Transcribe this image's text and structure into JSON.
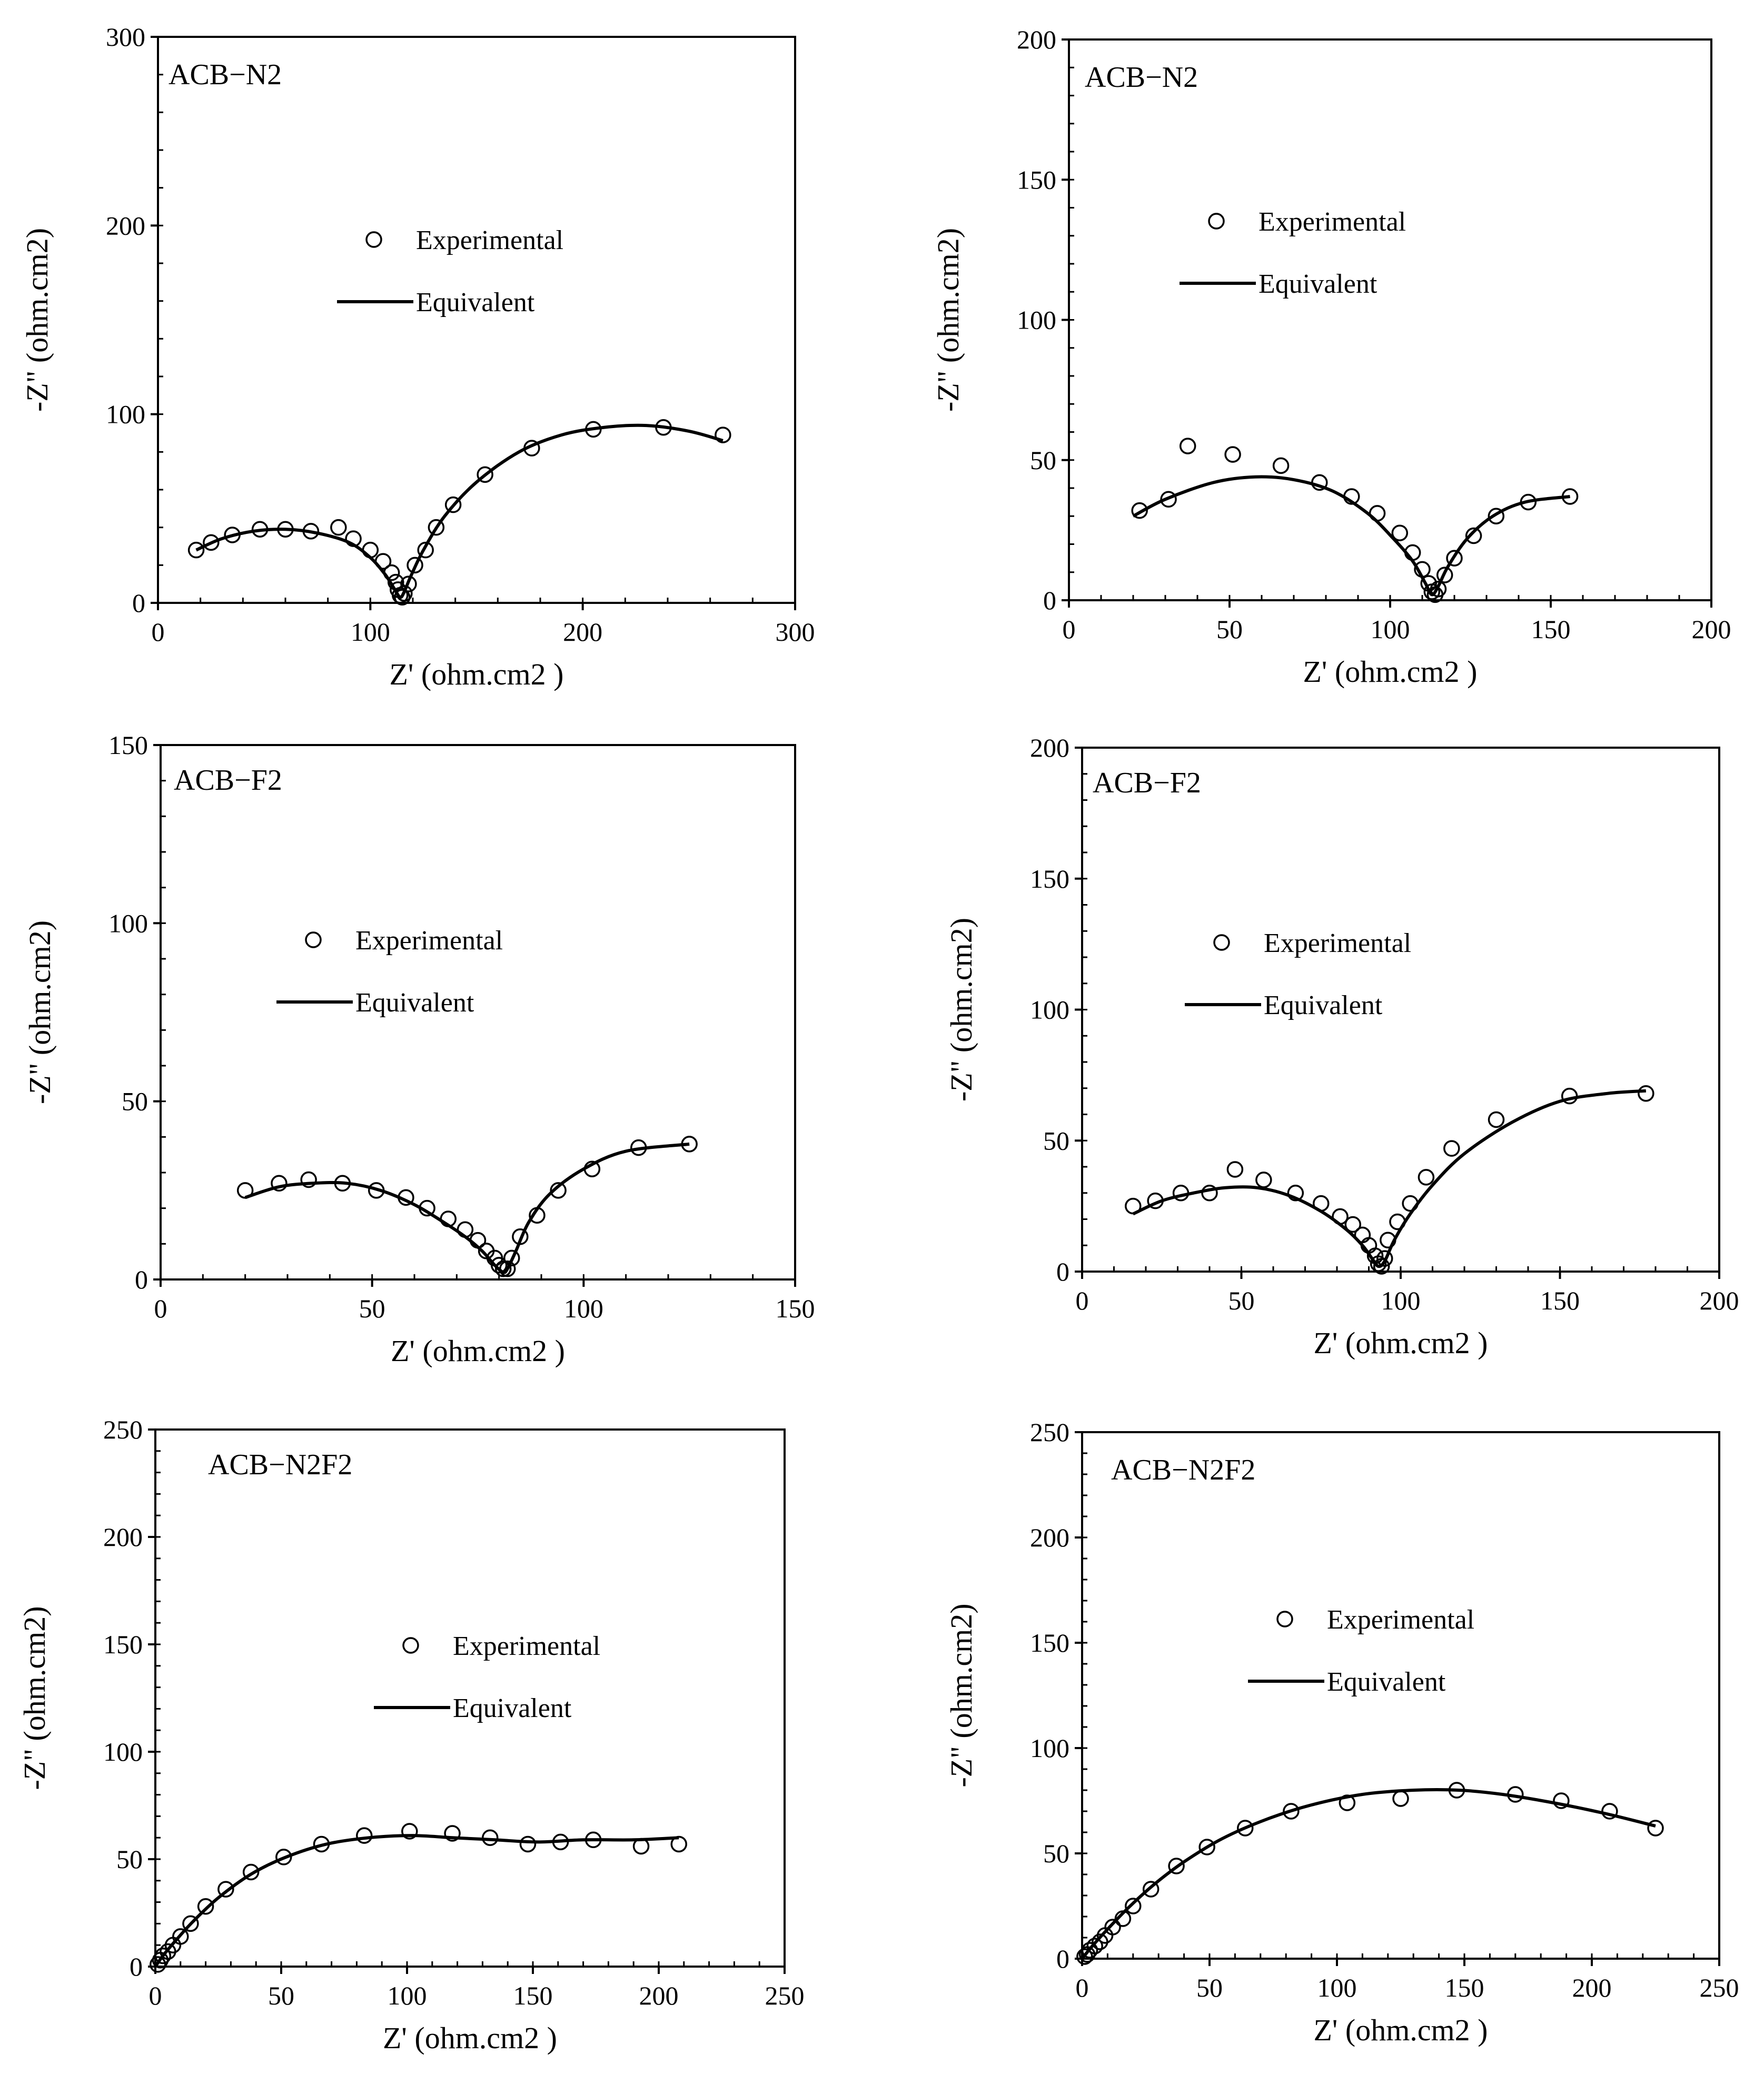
{
  "chart_data": [
    {
      "type": "scatter",
      "title": "ACB−N2",
      "xlabel": "Z' (ohm.cm2 )",
      "ylabel": "-Z\" (ohm.cm2)",
      "xlim": [
        0,
        300
      ],
      "ylim": [
        0,
        300
      ],
      "xticks": [
        0,
        100,
        200,
        300
      ],
      "yticks": [
        0,
        100,
        200,
        300
      ],
      "tick_labels_x": [
        "0",
        "100",
        "200",
        "300"
      ],
      "tick_labels_y": [
        "0",
        "100",
        "200",
        "300"
      ],
      "legend": {
        "experimental": "Experimental",
        "equivalent": "Equivalent",
        "placement": "upper-middle"
      },
      "series": [
        {
          "name": "Experimental",
          "marker": "circle",
          "x": [
            18,
            25,
            35,
            48,
            60,
            72,
            85,
            92,
            100,
            106,
            110,
            112,
            113,
            114,
            115,
            116,
            118,
            121,
            126,
            131,
            139,
            154,
            176,
            205,
            238,
            266
          ],
          "y": [
            28,
            32,
            36,
            39,
            39,
            38,
            40,
            34,
            28,
            22,
            16,
            11,
            7,
            4,
            3,
            5,
            10,
            20,
            28,
            40,
            52,
            68,
            82,
            92,
            93,
            89
          ]
        },
        {
          "name": "Equivalent",
          "style": "line",
          "x": [
            18,
            30,
            45,
            60,
            75,
            90,
            100,
            107,
            111,
            114,
            116,
            119,
            125,
            135,
            150,
            170,
            190,
            210,
            230,
            250,
            266
          ],
          "y": [
            28,
            34,
            38,
            39,
            37,
            32,
            24,
            15,
            8,
            3,
            6,
            14,
            28,
            46,
            64,
            80,
            89,
            93,
            94,
            91,
            86
          ]
        }
      ]
    },
    {
      "type": "scatter",
      "title": "ACB−N2",
      "xlabel": "Z' (ohm.cm2 )",
      "ylabel": "-Z\" (ohm.cm2)",
      "xlim": [
        0,
        200
      ],
      "ylim": [
        0,
        200
      ],
      "xticks": [
        0,
        50,
        100,
        150,
        200
      ],
      "yticks": [
        0,
        50,
        100,
        150,
        200
      ],
      "tick_labels_x": [
        "0",
        "50",
        "100",
        "150",
        "200"
      ],
      "tick_labels_y": [
        "0",
        "50",
        "100",
        "150",
        "200"
      ],
      "legend": {
        "experimental": "Experimental",
        "equivalent": "Equivalent",
        "placement": "upper-middle"
      },
      "series": [
        {
          "name": "Experimental",
          "marker": "circle",
          "x": [
            22,
            31,
            37,
            51,
            66,
            78,
            88,
            96,
            103,
            107,
            110,
            112,
            113,
            114,
            115,
            117,
            120,
            126,
            133,
            143,
            156
          ],
          "y": [
            32,
            36,
            55,
            52,
            48,
            42,
            37,
            31,
            24,
            17,
            11,
            6,
            3,
            2,
            4,
            9,
            15,
            23,
            30,
            35,
            37
          ]
        },
        {
          "name": "Equivalent",
          "style": "line",
          "x": [
            20,
            30,
            45,
            58,
            70,
            82,
            93,
            101,
            107,
            111,
            113,
            115,
            118,
            124,
            132,
            142,
            156
          ],
          "y": [
            30,
            36,
            42,
            44,
            43,
            39,
            31,
            22,
            14,
            6,
            2,
            5,
            12,
            22,
            30,
            35,
            37
          ]
        }
      ]
    },
    {
      "type": "scatter",
      "title": "ACB−F2",
      "xlabel": "Z' (ohm.cm2 )",
      "ylabel": "-Z\" (ohm.cm2)",
      "xlim": [
        0,
        150
      ],
      "ylim": [
        0,
        150
      ],
      "xticks": [
        0,
        50,
        100,
        150
      ],
      "yticks": [
        0,
        50,
        100,
        150
      ],
      "tick_labels_x": [
        "0",
        "50",
        "100",
        "150"
      ],
      "tick_labels_y": [
        "0",
        "50",
        "100",
        "150"
      ],
      "legend": {
        "experimental": "Experimental",
        "equivalent": "Equivalent",
        "placement": "upper-middle"
      },
      "series": [
        {
          "name": "Experimental",
          "marker": "circle",
          "x": [
            20,
            28,
            35,
            43,
            51,
            58,
            63,
            68,
            72,
            75,
            77,
            79,
            80,
            81,
            82,
            83,
            85,
            89,
            94,
            102,
            113,
            125
          ],
          "y": [
            25,
            27,
            28,
            27,
            25,
            23,
            20,
            17,
            14,
            11,
            8,
            6,
            4,
            3,
            3,
            6,
            12,
            18,
            25,
            31,
            37,
            38
          ]
        },
        {
          "name": "Equivalent",
          "style": "line",
          "x": [
            20,
            28,
            36,
            44,
            52,
            60,
            67,
            72,
            76,
            79,
            81,
            82,
            84,
            87,
            92,
            100,
            110,
            125
          ],
          "y": [
            23,
            26,
            27,
            27,
            25,
            21,
            16,
            12,
            8,
            4,
            2,
            3,
            8,
            16,
            24,
            31,
            36,
            38
          ]
        }
      ]
    },
    {
      "type": "scatter",
      "title": "ACB−F2",
      "xlabel": "Z' (ohm.cm2 )",
      "ylabel": "-Z\" (ohm.cm2)",
      "xlim": [
        0,
        200
      ],
      "ylim": [
        0,
        200
      ],
      "xticks": [
        0,
        50,
        100,
        150,
        200
      ],
      "yticks": [
        0,
        50,
        100,
        150,
        200
      ],
      "tick_labels_x": [
        "0",
        "50",
        "100",
        "150",
        "200"
      ],
      "tick_labels_y": [
        "0",
        "50",
        "100",
        "150",
        "200"
      ],
      "legend": {
        "experimental": "Experimental",
        "equivalent": "Equivalent",
        "placement": "upper-middle"
      },
      "series": [
        {
          "name": "Experimental",
          "marker": "circle",
          "x": [
            16,
            23,
            31,
            40,
            48,
            57,
            67,
            75,
            81,
            85,
            88,
            90,
            92,
            93,
            94,
            95,
            96,
            99,
            103,
            108,
            116,
            130,
            153,
            177
          ],
          "y": [
            25,
            27,
            30,
            30,
            39,
            35,
            30,
            26,
            21,
            18,
            14,
            10,
            6,
            3,
            2,
            5,
            12,
            19,
            26,
            36,
            47,
            58,
            67,
            68
          ]
        },
        {
          "name": "Equivalent",
          "style": "line",
          "x": [
            16,
            25,
            35,
            45,
            55,
            65,
            75,
            83,
            88,
            91,
            93,
            95,
            98,
            103,
            110,
            120,
            135,
            150,
            165,
            177
          ],
          "y": [
            22,
            27,
            30,
            32,
            32,
            29,
            23,
            16,
            10,
            5,
            2,
            4,
            12,
            22,
            33,
            45,
            57,
            65,
            68,
            69
          ]
        }
      ]
    },
    {
      "type": "scatter",
      "title": "ACB−N2F2",
      "xlabel": "Z' (ohm.cm2 )",
      "ylabel": "-Z\" (ohm.cm2)",
      "xlim": [
        0,
        250
      ],
      "ylim": [
        0,
        250
      ],
      "xticks": [
        0,
        50,
        100,
        150,
        200,
        250
      ],
      "yticks": [
        0,
        50,
        100,
        150,
        200,
        250
      ],
      "tick_labels_x": [
        "0",
        "50",
        "100",
        "150",
        "200",
        "250"
      ],
      "tick_labels_y": [
        "0",
        "50",
        "100",
        "150",
        "200",
        "250"
      ],
      "legend": {
        "experimental": "Experimental",
        "equivalent": "Equivalent",
        "placement": "center"
      },
      "series": [
        {
          "name": "Experimental",
          "marker": "circle",
          "x": [
            1,
            2,
            3,
            5,
            7,
            10,
            14,
            20,
            28,
            38,
            51,
            66,
            83,
            101,
            118,
            133,
            148,
            161,
            174,
            193,
            208
          ],
          "y": [
            1,
            3,
            5,
            7,
            10,
            14,
            20,
            28,
            36,
            44,
            51,
            57,
            61,
            63,
            62,
            60,
            57,
            58,
            59,
            56,
            57
          ]
        },
        {
          "name": "Equivalent",
          "style": "line",
          "x": [
            0,
            3,
            8,
            15,
            25,
            38,
            52,
            68,
            85,
            102,
            118,
            135,
            152,
            170,
            190,
            208
          ],
          "y": [
            0,
            5,
            12,
            21,
            32,
            43,
            51,
            57,
            60,
            61,
            60,
            59,
            58,
            59,
            59,
            60
          ]
        }
      ]
    },
    {
      "type": "scatter",
      "title": "ACB−N2F2",
      "xlabel": "Z' (ohm.cm2 )",
      "ylabel": "-Z\" (ohm.cm2)",
      "xlim": [
        0,
        250
      ],
      "ylim": [
        0,
        250
      ],
      "xticks": [
        0,
        50,
        100,
        150,
        200,
        250
      ],
      "yticks": [
        0,
        50,
        100,
        150,
        200,
        250
      ],
      "tick_labels_x": [
        "0",
        "50",
        "100",
        "150",
        "200",
        "250"
      ],
      "tick_labels_y": [
        "0",
        "50",
        "100",
        "150",
        "200",
        "250"
      ],
      "legend": {
        "experimental": "Experimental",
        "equivalent": "Equivalent",
        "placement": "center"
      },
      "series": [
        {
          "name": "Experimental",
          "marker": "circle",
          "x": [
            1,
            2,
            3,
            5,
            7,
            9,
            12,
            16,
            20,
            27,
            37,
            49,
            64,
            82,
            104,
            125,
            147,
            170,
            188,
            207,
            225
          ],
          "y": [
            1,
            2,
            4,
            6,
            8,
            11,
            15,
            19,
            25,
            33,
            44,
            53,
            62,
            70,
            74,
            76,
            80,
            78,
            75,
            70,
            62
          ]
        },
        {
          "name": "Equivalent",
          "style": "line",
          "x": [
            0,
            4,
            10,
            18,
            28,
            40,
            55,
            72,
            90,
            110,
            130,
            148,
            165,
            185,
            205,
            225
          ],
          "y": [
            0,
            6,
            14,
            24,
            35,
            46,
            57,
            66,
            73,
            78,
            80,
            80,
            78,
            74,
            69,
            63
          ]
        }
      ]
    }
  ]
}
